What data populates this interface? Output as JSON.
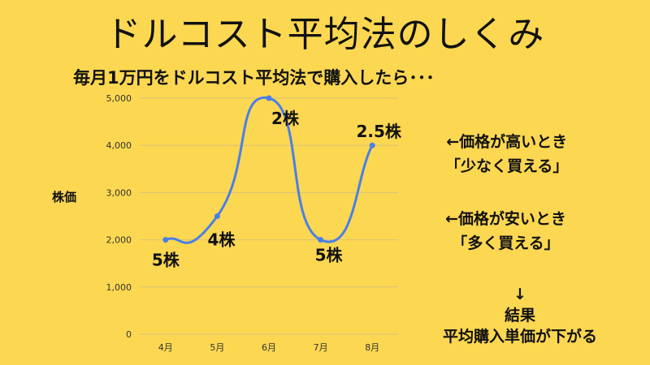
{
  "title": "ドルコスト平均法のしくみ",
  "subtitle": "毎月1万円をドルコスト平均法で購入したら･･･",
  "chart_data": {
    "type": "line",
    "ylabel": "株価",
    "xlabel": "",
    "categories": [
      "4月",
      "5月",
      "6月",
      "7月",
      "8月"
    ],
    "series": [
      {
        "values": [
          2000,
          2500,
          5000,
          2000,
          4000
        ]
      }
    ],
    "data_labels": [
      "5株",
      "4株",
      "2株",
      "5株",
      "2.5株"
    ],
    "ylim": [
      0,
      5000
    ],
    "yticks": [
      0,
      1000,
      2000,
      3000,
      4000,
      5000
    ],
    "ytick_labels": [
      "0",
      "1,000",
      "2,000",
      "3,000",
      "4,000",
      "5,000"
    ],
    "grid": true,
    "line_color": "#4A7FE8"
  },
  "notes": {
    "high_line1": "←価格が高いとき",
    "high_line2": "「少なく買える」",
    "low_line1": "←価格が安いとき",
    "low_line2": "「多く買える」",
    "arrow": "↓",
    "result_line1": "結果",
    "result_line2": "平均購入単価が下がる"
  }
}
